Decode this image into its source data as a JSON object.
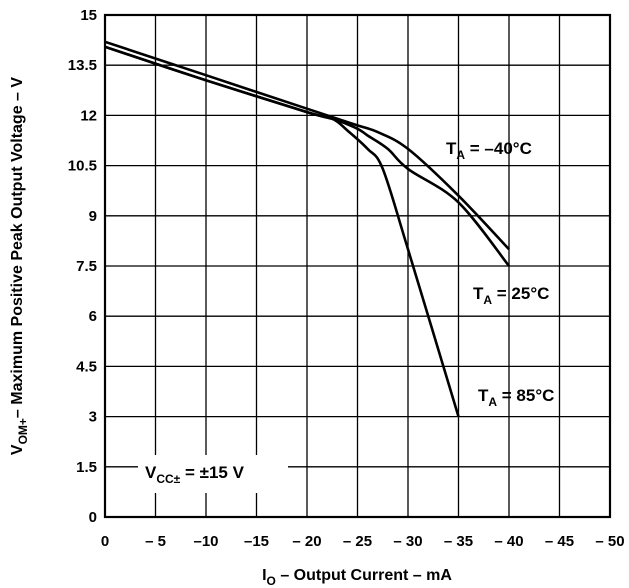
{
  "chart_data": {
    "type": "line",
    "xlabel": {
      "main": "I",
      "sub": "O",
      "rest": " – Output Current – mA"
    },
    "ylabel": {
      "main": "V",
      "sub": "OM+",
      "rest": "– Maximum Positive Peak Output Voltage – V"
    },
    "xlim": [
      0,
      -50
    ],
    "ylim": [
      0,
      15
    ],
    "x_ticks": [
      0,
      -5,
      -10,
      -15,
      -20,
      -25,
      -30,
      -35,
      -40,
      -45,
      -50
    ],
    "x_tick_labels": [
      "0",
      "– 5",
      "–10",
      "–15",
      "– 20",
      "– 25",
      "– 30",
      "– 35",
      "– 40",
      "– 45",
      "– 50"
    ],
    "y_ticks": [
      0,
      1.5,
      3,
      4.5,
      6,
      7.5,
      9,
      10.5,
      12,
      13.5,
      15
    ],
    "y_tick_labels": [
      "0",
      "1.5",
      "3",
      "4.5",
      "6",
      "7.5",
      "9",
      "10.5",
      "12",
      "13.5",
      "15"
    ],
    "grid": true,
    "series": [
      {
        "name": "T_A = –40°C",
        "x": [
          0,
          -10,
          -20,
          -23,
          -25,
          -27,
          -30,
          -35,
          -40
        ],
        "y": [
          14.2,
          13.2,
          12.2,
          11.9,
          11.7,
          11.5,
          11.0,
          9.6,
          8.0
        ]
      },
      {
        "name": "T_A = 25°C",
        "x": [
          0,
          -10,
          -20,
          -23,
          -25,
          -26,
          -28,
          -30,
          -35,
          -40
        ],
        "y": [
          14.05,
          13.05,
          12.1,
          11.85,
          11.6,
          11.4,
          11.0,
          10.4,
          9.4,
          7.5
        ]
      },
      {
        "name": "T_A = 85°C",
        "x": [
          0,
          -10,
          -20,
          -22.5,
          -24,
          -26,
          -27.5,
          -30,
          -35
        ],
        "y": [
          14.05,
          13.05,
          12.1,
          11.9,
          11.55,
          11.0,
          10.4,
          8.0,
          3.0
        ]
      }
    ],
    "annotations": [
      {
        "id": "t40",
        "main": "T",
        "sub": "A",
        "rest": " = –40°C"
      },
      {
        "id": "t25",
        "main": "T",
        "sub": "A",
        "rest": " = 25°C"
      },
      {
        "id": "t85",
        "main": "T",
        "sub": "A",
        "rest": " = 85°C"
      },
      {
        "id": "vcc",
        "main": "V",
        "sub": "CC±",
        "rest": " = ±15 V"
      }
    ]
  }
}
